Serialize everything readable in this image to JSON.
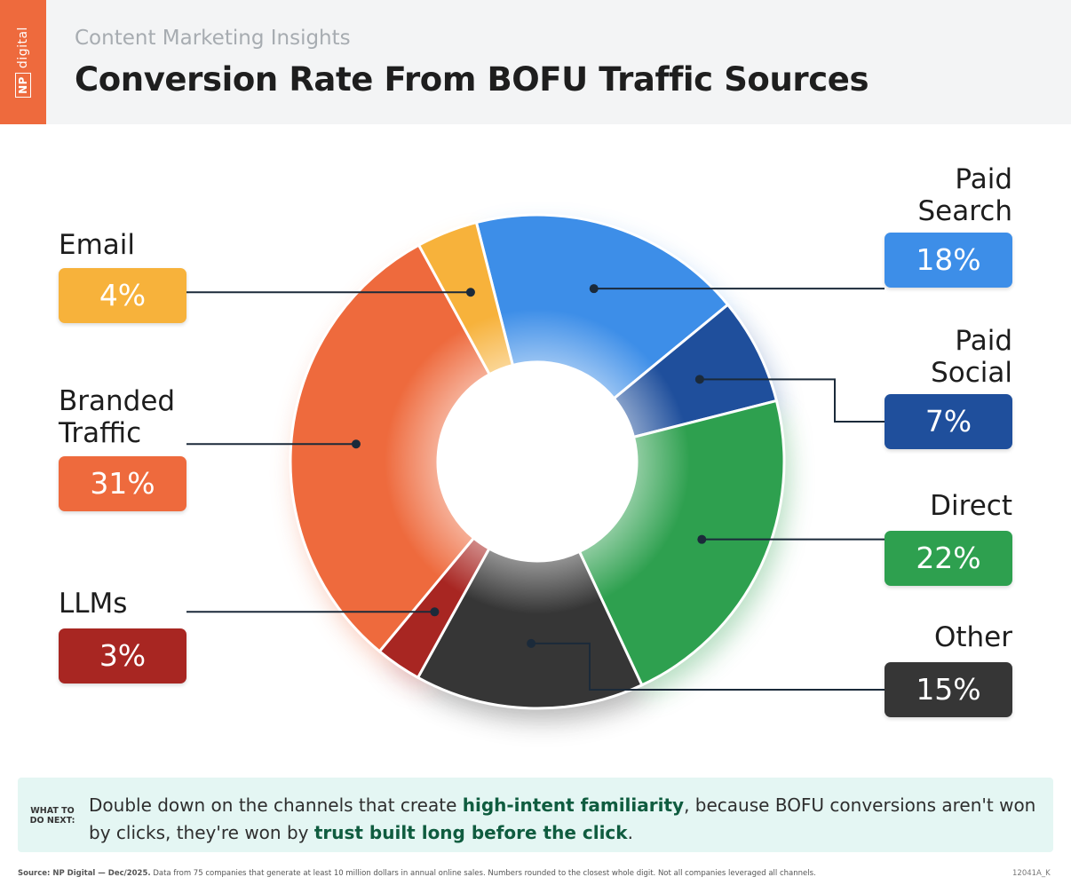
{
  "brand": {
    "logo_mark": "NP",
    "logo_text": "digital"
  },
  "header": {
    "subtitle": "Content Marketing Insights",
    "title": "Conversion Rate From BOFU Traffic Sources"
  },
  "chart_data": {
    "type": "pie",
    "donut": true,
    "title": "Conversion Rate From BOFU Traffic Sources",
    "unit": "%",
    "slices": [
      {
        "id": "paid-search",
        "label": "Paid Search",
        "label_lines": [
          "Paid",
          "Search"
        ],
        "value": 18,
        "display": "18%",
        "color": "#3d8ee8"
      },
      {
        "id": "paid-social",
        "label": "Paid Social",
        "label_lines": [
          "Paid",
          "Social"
        ],
        "value": 7,
        "display": "7%",
        "color": "#1f4f9c"
      },
      {
        "id": "direct",
        "label": "Direct",
        "label_lines": [
          "Direct"
        ],
        "value": 22,
        "display": "22%",
        "color": "#2ea04f"
      },
      {
        "id": "other",
        "label": "Other",
        "label_lines": [
          "Other"
        ],
        "value": 15,
        "display": "15%",
        "color": "#363636"
      },
      {
        "id": "llms",
        "label": "LLMs",
        "label_lines": [
          "LLMs"
        ],
        "value": 3,
        "display": "3%",
        "color": "#a82622"
      },
      {
        "id": "branded-traffic",
        "label": "Branded Traffic",
        "label_lines": [
          "Branded",
          "Traffic"
        ],
        "value": 31,
        "display": "31%",
        "color": "#ee6a3d"
      },
      {
        "id": "email",
        "label": "Email",
        "label_lines": [
          "Email"
        ],
        "value": 4,
        "display": "4%",
        "color": "#f7b23b"
      }
    ]
  },
  "callout": {
    "label": "WHAT TO DO NEXT:",
    "text_1": "Double down on the channels that create ",
    "highlight_1": "high-intent familiarity",
    "text_2": ", because BOFU conversions aren't won by clicks, they're won by ",
    "highlight_2": "trust built long before the click",
    "text_3": "."
  },
  "footer": {
    "source_label": "Source: NP Digital — Dec/2025.",
    "note": "Data from 75 companies that generate at least 10 million dollars in annual online sales. Numbers rounded to the closest whole digit. Not all companies leveraged all channels.",
    "code": "12041A_K"
  }
}
